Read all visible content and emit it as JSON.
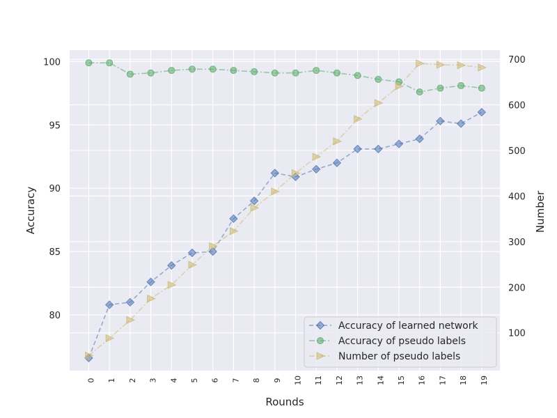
{
  "chart_data": {
    "type": "line",
    "xlabel": "Rounds",
    "ylabel_left": "Accuracy",
    "ylabel_right": "Number",
    "categories": [
      "0",
      "1",
      "2",
      "3",
      "4",
      "5",
      "6",
      "7",
      "8",
      "9",
      "10",
      "11",
      "12",
      "13",
      "14",
      "15",
      "16",
      "17",
      "18",
      "19"
    ],
    "y_left_ticks": [
      "80",
      "85",
      "90",
      "95",
      "100"
    ],
    "y_right_ticks": [
      "100",
      "200",
      "300",
      "400",
      "500",
      "600",
      "700"
    ],
    "y_left_range": [
      75.6,
      100.9
    ],
    "y_right_range": [
      17,
      720
    ],
    "legend_position": "lower right",
    "grid": true,
    "background": "#eaeaf2",
    "series": [
      {
        "name": "Accuracy of learned network",
        "axis": "left",
        "marker": "diamond",
        "linestyle": "dashed",
        "color": "#4c72b0",
        "values": [
          76.6,
          80.8,
          81.0,
          82.6,
          83.9,
          84.9,
          85.0,
          87.6,
          89.0,
          91.2,
          90.9,
          91.5,
          92.0,
          93.1,
          93.1,
          93.5,
          93.9,
          95.3,
          95.1,
          96.0
        ]
      },
      {
        "name": "Accuracy of pseudo labels",
        "axis": "left",
        "marker": "circle",
        "linestyle": "dashdot",
        "color": "#55a868",
        "values": [
          99.9,
          99.9,
          99.0,
          99.1,
          99.3,
          99.4,
          99.4,
          99.3,
          99.2,
          99.1,
          99.1,
          99.3,
          99.1,
          98.9,
          98.6,
          98.4,
          97.6,
          97.9,
          98.1,
          97.9
        ]
      },
      {
        "name": "Number of pseudo labels",
        "axis": "right",
        "marker": "triangle-right",
        "linestyle": "dashdot",
        "color": "#ccb974",
        "values": [
          50,
          88,
          128,
          175,
          205,
          249,
          290,
          323,
          374,
          410,
          450,
          486,
          520,
          569,
          604,
          641,
          691,
          688,
          687,
          682
        ]
      }
    ]
  }
}
